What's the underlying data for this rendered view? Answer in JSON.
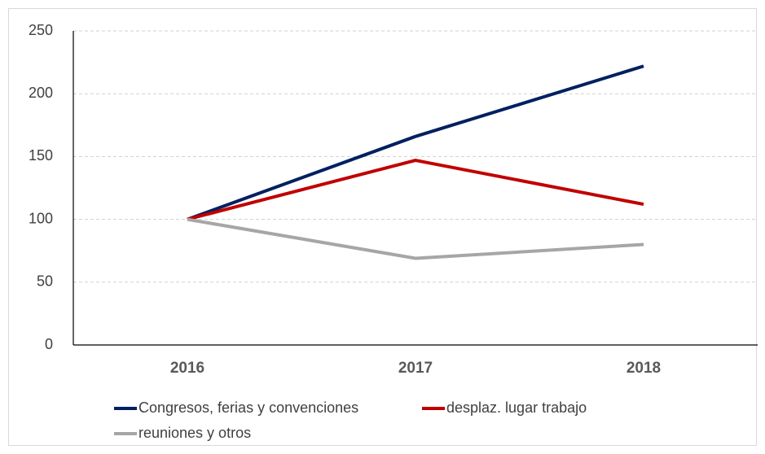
{
  "chart_data": {
    "type": "line",
    "categories": [
      "2016",
      "2017",
      "2018"
    ],
    "series": [
      {
        "name": "Congresos, ferias y convenciones",
        "color": "#002060",
        "values": [
          100,
          166,
          222
        ]
      },
      {
        "name": "desplaz. lugar  trabajo",
        "color": "#c00000",
        "values": [
          100,
          147,
          112
        ]
      },
      {
        "name": "reuniones y otros",
        "color": "#a6a6a6",
        "values": [
          100,
          69,
          80
        ]
      }
    ],
    "ylim": [
      0,
      250
    ],
    "yticks": [
      0,
      50,
      100,
      150,
      200,
      250
    ],
    "grid": true,
    "legend": "bottom"
  }
}
